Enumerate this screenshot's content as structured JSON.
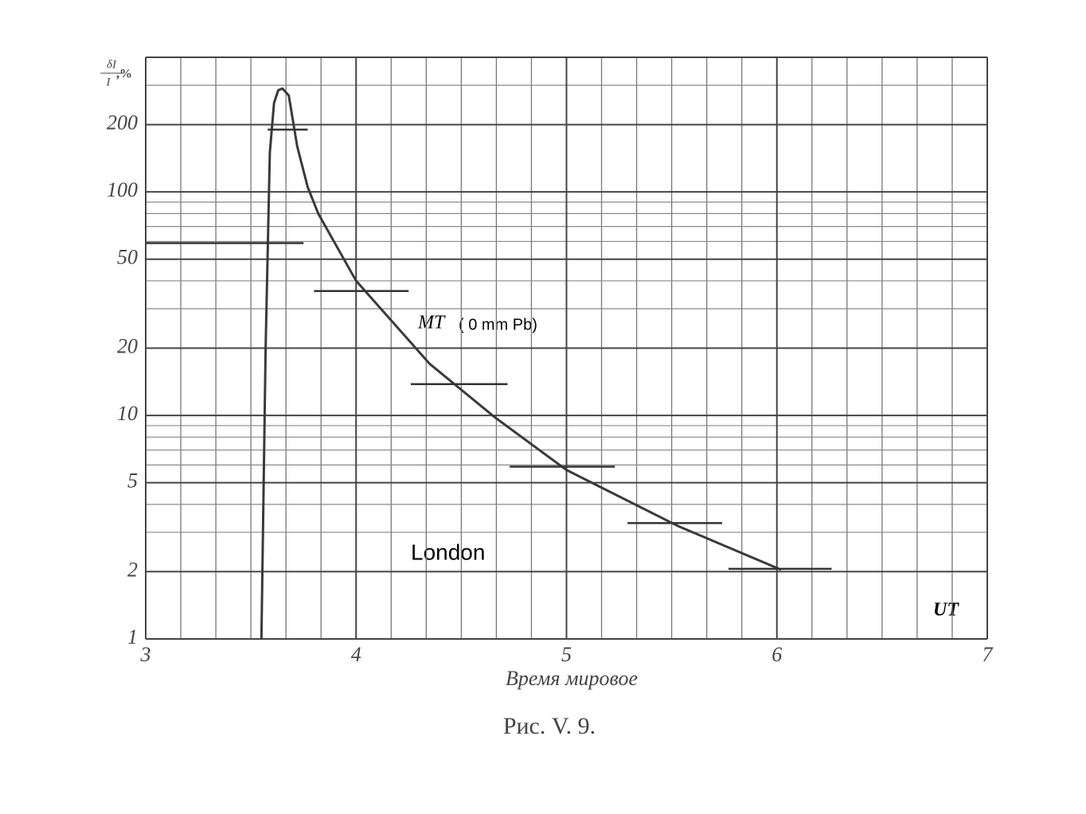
{
  "chart_data": {
    "type": "line",
    "ylabel": {
      "numerator": "δI",
      "denominator": "I",
      "unit": ",%"
    },
    "xlabel": "Время мировое",
    "caption": "Рис. V. 9.",
    "annotations": [
      "MT",
      "( 0 mm Pb)",
      "London",
      "UT"
    ],
    "xlim": [
      3,
      7
    ],
    "ylim": [
      1,
      400
    ],
    "ylog": true,
    "grid": true,
    "xticks": [
      3,
      4,
      5,
      6,
      7
    ],
    "yticks": [
      1,
      2,
      5,
      10,
      20,
      50,
      100,
      200
    ],
    "color": "#3a3a3a",
    "x": [
      3.55,
      3.57,
      3.59,
      3.61,
      3.63,
      3.65,
      3.68,
      3.72,
      3.77,
      3.82,
      4.0,
      4.35,
      4.66,
      5.0,
      5.53,
      6.02
    ],
    "values": [
      1,
      20,
      150,
      250,
      285,
      290,
      270,
      160,
      105,
      80,
      40,
      17,
      9.8,
      5.7,
      3.2,
      2.04
    ],
    "intervals": {
      "x_start": [
        3.58,
        3.0,
        3.8,
        4.26,
        4.73,
        5.29,
        5.77
      ],
      "x_end": [
        3.77,
        3.75,
        4.25,
        4.72,
        5.23,
        5.74,
        6.26
      ],
      "values": [
        190,
        59,
        36,
        13.8,
        5.9,
        3.3,
        2.06
      ]
    }
  }
}
